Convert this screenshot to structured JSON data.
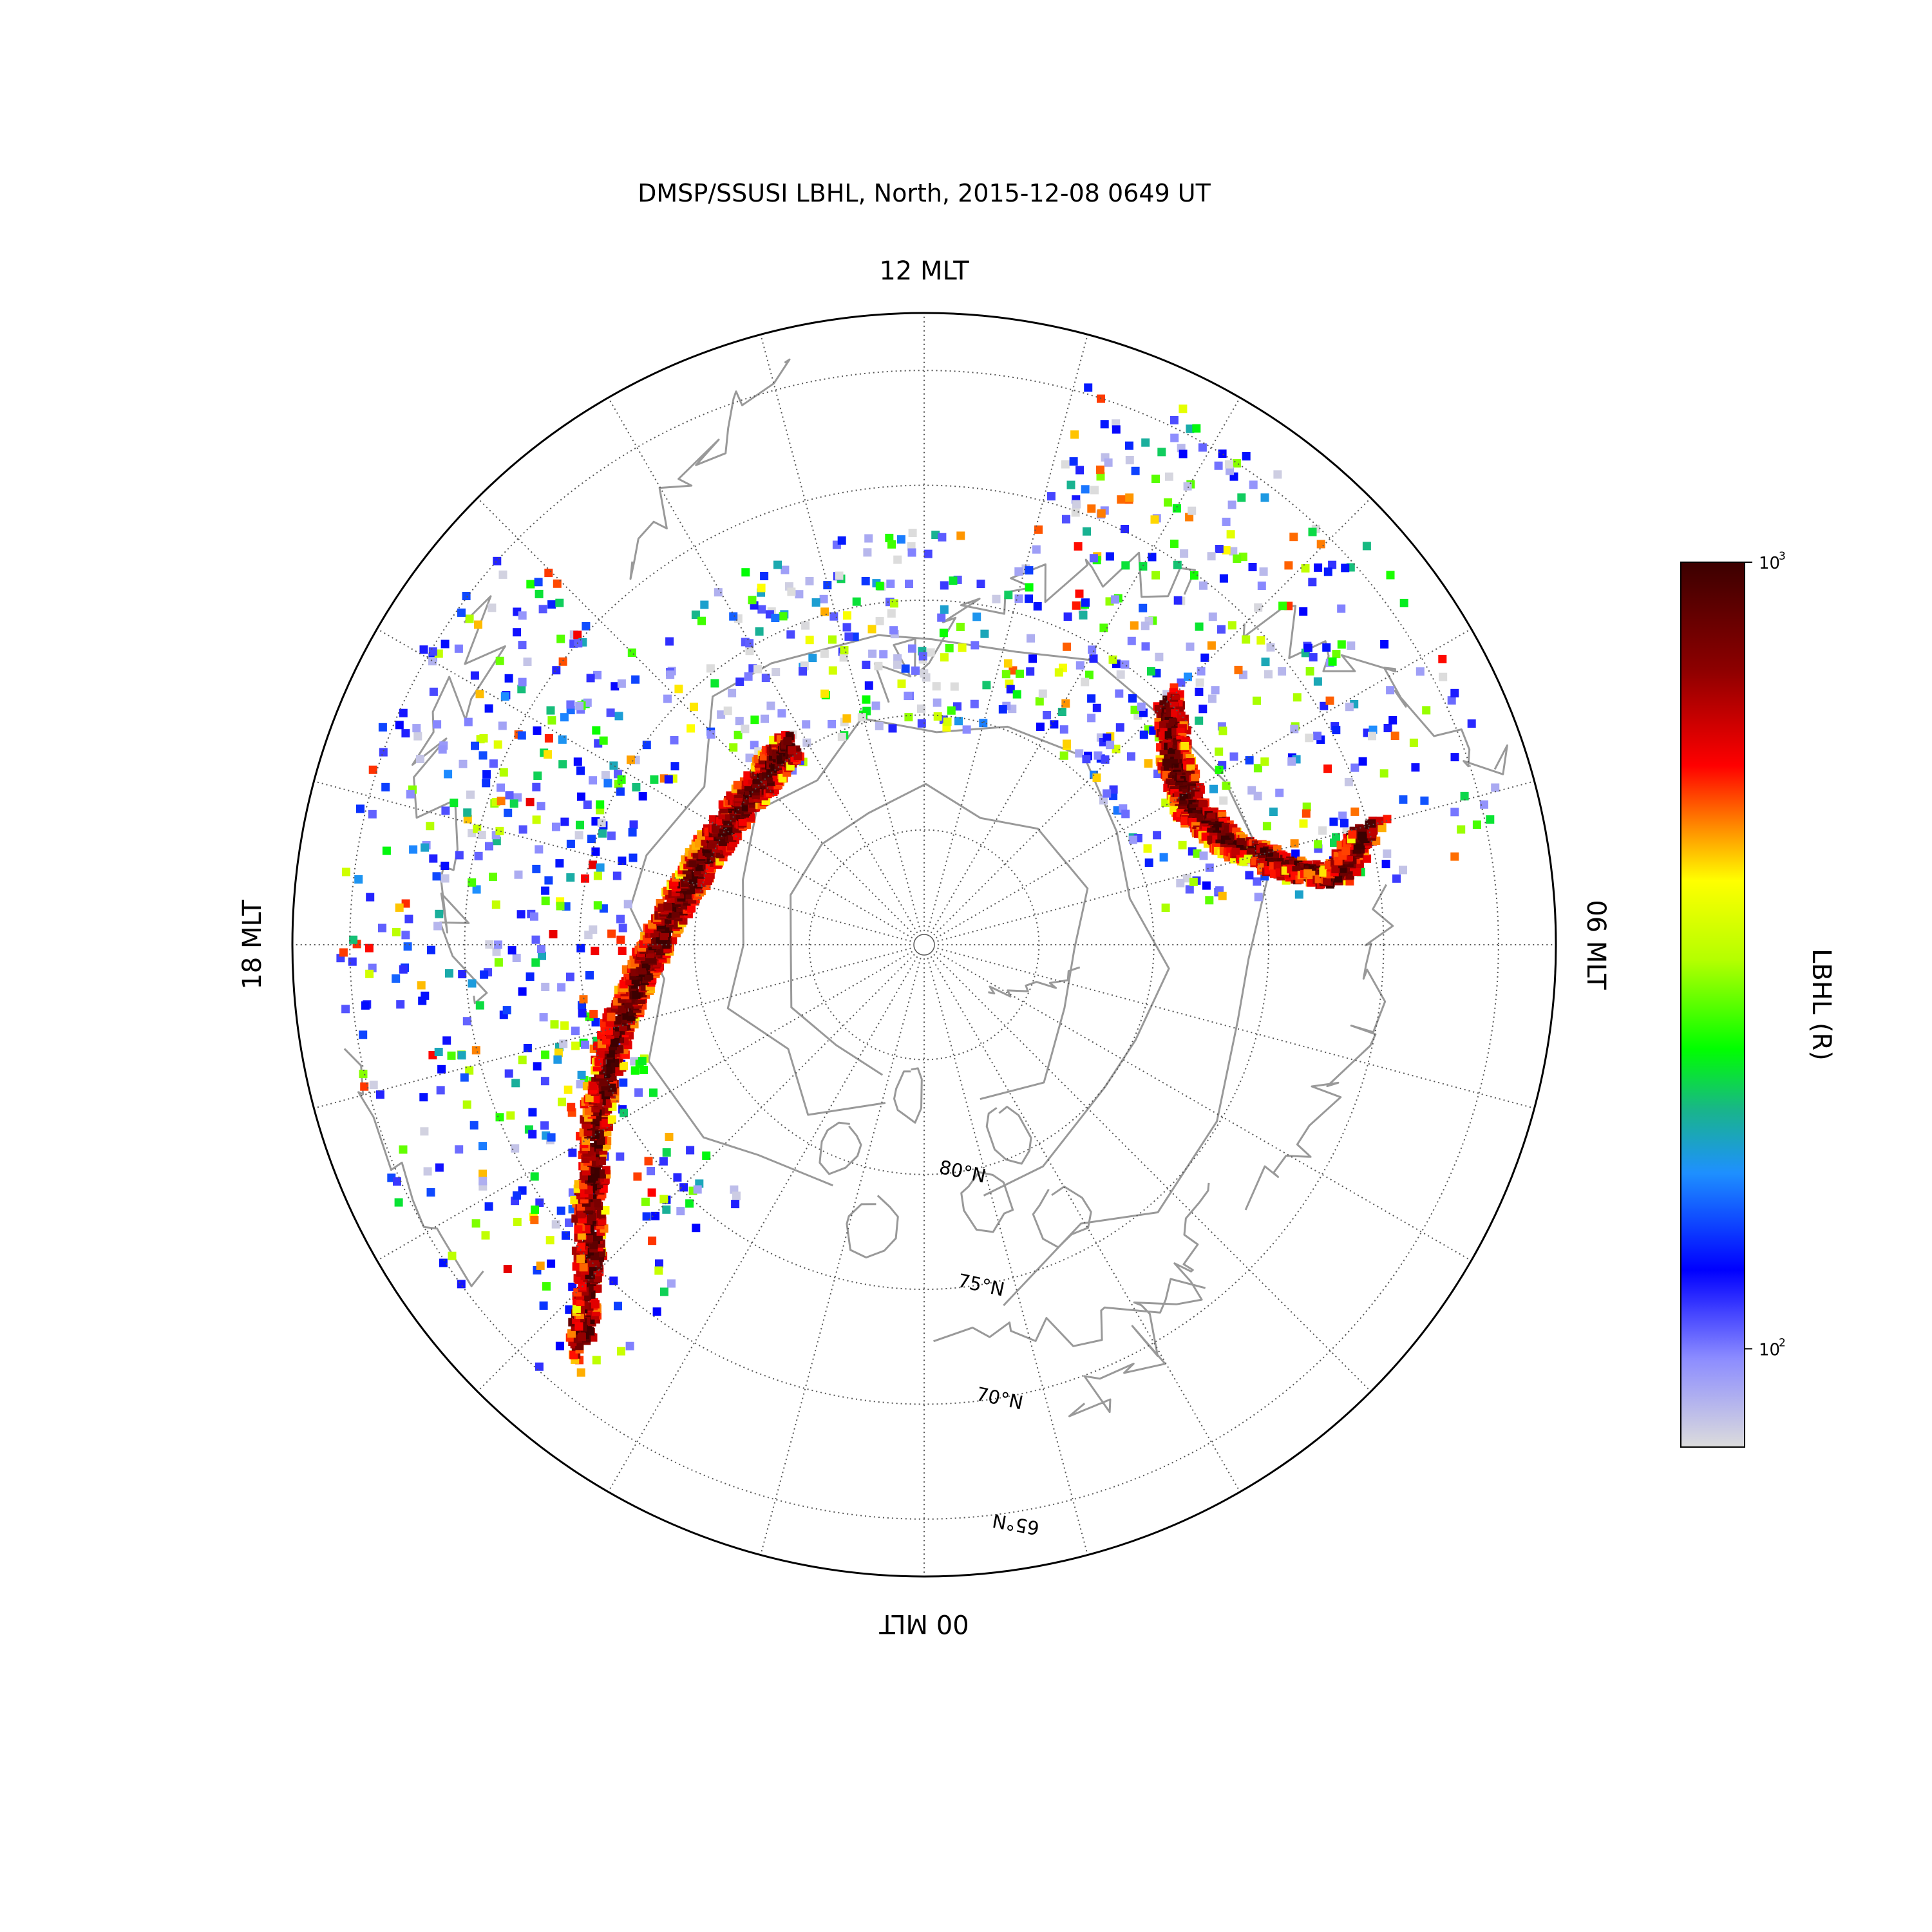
{
  "title": "DMSP/SSUSI LBHL, North, 2015-12-08 0649 UT",
  "mlt_labels": {
    "top": "12 MLT",
    "right": "06 MLT",
    "bottom": "00 MLT",
    "left": "18 MLT"
  },
  "colorbar": {
    "label": "LBHL (R)",
    "ticks": [
      {
        "base": "10",
        "exp": "3",
        "value": 1000
      },
      {
        "base": "10",
        "exp": "2",
        "value": 100
      }
    ],
    "range": [
      75,
      1000
    ],
    "scale": "log",
    "colors": [
      "#dcdcdc",
      "#8c8cff",
      "#0000ff",
      "#1e90ff",
      "#19b48c",
      "#00ff00",
      "#b4ff00",
      "#ffff00",
      "#ff8c00",
      "#ff0000",
      "#8c0000",
      "#3c0000"
    ]
  },
  "chart_data": {
    "type": "heatmap",
    "projection": "north polar, magnetic latitude vs magnetic local time",
    "lat_range": [
      62.5,
      90
    ],
    "lat_rings": [
      {
        "lat": 65,
        "label": "65°N"
      },
      {
        "lat": 70,
        "label": "70°N"
      },
      {
        "lat": 75,
        "label": "75°N"
      },
      {
        "lat": 80,
        "label": "80°N"
      },
      {
        "lat": 85,
        "label": ""
      }
    ],
    "mlt_meridian_step_hours": 1,
    "coastlines_color": "#999999",
    "aurora_bands": [
      {
        "name": "",
        "points": [
          [
            67.0,
            21.3
          ],
          [
            70.0,
            20.9
          ],
          [
            72.5,
            20.3
          ],
          [
            75.0,
            19.5
          ],
          [
            77.0,
            18.7
          ],
          [
            78.4,
            18.0
          ],
          [
            79.5,
            17.0
          ],
          [
            80.0,
            16.0
          ],
          [
            80.0,
            15.0
          ],
          [
            79.5,
            14.2
          ]
        ],
        "peak_R": 1000
      },
      {
        "name": "",
        "points": [
          [
            75.0,
            9.0
          ],
          [
            76.5,
            8.4
          ],
          [
            77.0,
            7.8
          ],
          [
            76.0,
            7.2
          ],
          [
            74.0,
            6.8
          ],
          [
            72.0,
            6.6
          ],
          [
            70.0,
            7.0
          ]
        ],
        "peak_R": 1000
      }
    ],
    "diffuse_regions": [
      {
        "mlt_range": [
          15.0,
          21.6
        ],
        "lat_range": [
          64.5,
          77.0
        ],
        "mean_R": 140
      },
      {
        "mlt_range": [
          6.5,
          11.0
        ],
        "lat_range": [
          64.0,
          80.0
        ],
        "mean_R": 130
      },
      {
        "mlt_range": [
          11.0,
          15.0
        ],
        "lat_range": [
          72.0,
          80.5
        ],
        "mean_R": 110
      }
    ]
  }
}
